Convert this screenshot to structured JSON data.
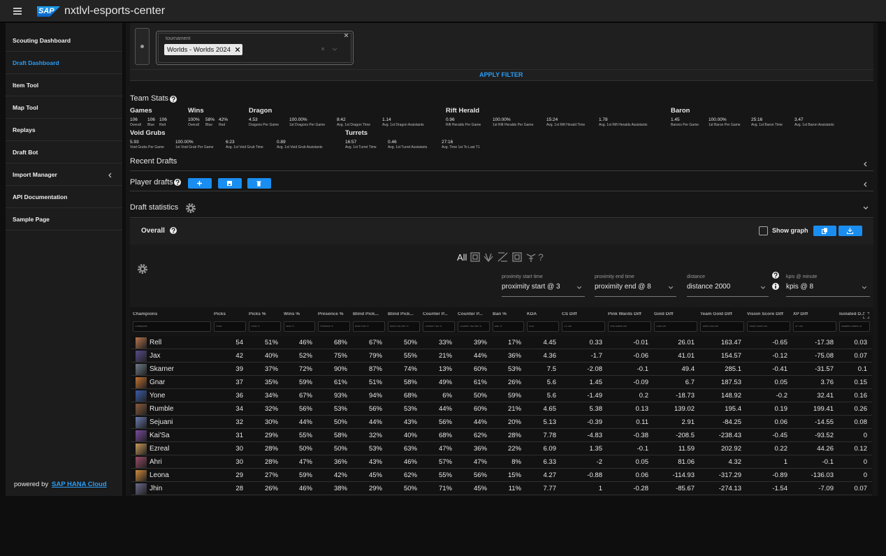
{
  "header": {
    "logo": "SAP",
    "title": "nxtlvl-esports-center"
  },
  "sidebar": {
    "items": [
      "Scouting Dashboard",
      "Draft Dashboard",
      "Item Tool",
      "Map Tool",
      "Replays",
      "Draft Bot",
      "Import Manager",
      "API Documentation",
      "Sample Page"
    ],
    "footer_prefix": "powered by",
    "footer_link": "SAP HANA Cloud"
  },
  "filter": {
    "label": "tournament",
    "chip": "Worlds - Worlds 2024",
    "apply": "APPLY FILTER"
  },
  "team_stats": {
    "title": "Team Stats",
    "groups": [
      {
        "name": "Games",
        "items": [
          {
            "value": "106",
            "label": "Overall"
          },
          {
            "value": "106",
            "label": "Blue"
          },
          {
            "value": "106",
            "label": "Red"
          }
        ]
      },
      {
        "name": "Wins",
        "items": [
          {
            "value": "100%",
            "label": "Overall"
          },
          {
            "value": "58%",
            "label": "Blue"
          },
          {
            "value": "42%",
            "label": "Red"
          }
        ]
      },
      {
        "name": "Dragon",
        "items": [
          {
            "value": "4.53",
            "label": "Dragons Per Game"
          },
          {
            "value": "100.00%",
            "label": "1st Dragons Per Game"
          },
          {
            "value": "8:42",
            "label": "Avg. 1st Dragon Time"
          },
          {
            "value": "1.14",
            "label": "Avg. 1st Dragon Assistants"
          }
        ]
      },
      {
        "name": "Rift Herald",
        "items": [
          {
            "value": "0.96",
            "label": "Rift Heralds Per Game"
          },
          {
            "value": "100.00%",
            "label": "1st Rift Heralds Per Game"
          },
          {
            "value": "15:24",
            "label": "Avg. 1st Rift Herald Time"
          },
          {
            "value": "1.78",
            "label": "Avg. 1st Rift Heralds Assistants"
          }
        ]
      },
      {
        "name": "Baron",
        "items": [
          {
            "value": "1.45",
            "label": "Barons Per Game"
          },
          {
            "value": "100.00%",
            "label": "1st Baron Per Game"
          },
          {
            "value": "25:16",
            "label": "Avg. 1st Baron Time"
          },
          {
            "value": "3.47",
            "label": "Avg. 1st Baron Assistants"
          }
        ]
      },
      {
        "name": "Void Grubs",
        "items": [
          {
            "value": "5.93",
            "label": "Void Grubs Per Game"
          },
          {
            "value": "100.00%",
            "label": "1st Void Grub Per Game"
          },
          {
            "value": "6:23",
            "label": "Avg. 1st Void Grub Time"
          },
          {
            "value": "0.89",
            "label": "Avg. 1st Void Grub Assistants"
          }
        ]
      },
      {
        "name": "Turrets",
        "items": [
          {
            "value": "16:57",
            "label": "Avg. 1st Turret Time"
          },
          {
            "value": "0.46",
            "label": "Avg. 1st Turret Assistants"
          },
          {
            "value": "27:16",
            "label": "Avg. Time 1st To Last T1"
          }
        ]
      }
    ]
  },
  "recent_drafts": {
    "title": "Recent Drafts"
  },
  "player_drafts": {
    "title": "Player drafts"
  },
  "draft_statistics": {
    "title": "Draft statistics",
    "overall": "Overall",
    "show_graph": "Show graph",
    "role_all": "All",
    "role_unknown": "?",
    "dropdowns": [
      {
        "label": "proximity start time",
        "value": "proximity start @ 3"
      },
      {
        "label": "proximity end time",
        "value": "proximity end @ 8"
      },
      {
        "label": "distance",
        "value": "distance 2000"
      },
      {
        "label": "kpis @ minute",
        "value": "kpis @ 8"
      }
    ],
    "table": {
      "columns": [
        "Champions",
        "Picks",
        "Picks %",
        "Wins %",
        "Presence %",
        "Blind Pick...",
        "Blind Pick...",
        "Counter P...",
        "Counter P...",
        "Ban %",
        "KDA",
        "CS Diff",
        "Pink Wards Diff",
        "Gold Diff",
        "Team Gold Diff",
        "Vision Score Diff",
        "XP Diff",
        "Isolated D..."
      ],
      "filters": [
        "Champions",
        "Picks",
        "Picks %",
        "Wins %",
        "Presence %",
        "Blind Pick %",
        "Blind Pick Win %",
        "Counter Pick %",
        "Counter Pick Win %",
        "Ban %",
        "KDA",
        "CS Diff",
        "Pink Wards Diff",
        "Gold Diff",
        "Team Gold Diff",
        "Vision Score Diff",
        "XP Diff",
        "Isolated Deaths 15"
      ],
      "rows": [
        [
          "Rell",
          "54",
          "51%",
          "46%",
          "68%",
          "67%",
          "50%",
          "33%",
          "39%",
          "17%",
          "4.45",
          "0.33",
          "-0.01",
          "26.01",
          "163.47",
          "-0.65",
          "-17.38",
          "0.03"
        ],
        [
          "Jax",
          "42",
          "40%",
          "52%",
          "75%",
          "79%",
          "55%",
          "21%",
          "44%",
          "36%",
          "4.36",
          "-1.7",
          "-0.06",
          "41.01",
          "154.57",
          "-0.12",
          "-75.08",
          "0.07"
        ],
        [
          "Skarner",
          "39",
          "37%",
          "72%",
          "90%",
          "87%",
          "74%",
          "13%",
          "60%",
          "53%",
          "7.5",
          "-2.08",
          "-0.1",
          "49.4",
          "285.1",
          "-0.41",
          "-31.57",
          "0.1"
        ],
        [
          "Gnar",
          "37",
          "35%",
          "59%",
          "61%",
          "51%",
          "58%",
          "49%",
          "61%",
          "26%",
          "5.6",
          "1.45",
          "-0.09",
          "6.7",
          "187.53",
          "0.05",
          "3.76",
          "0.15"
        ],
        [
          "Yone",
          "36",
          "34%",
          "67%",
          "93%",
          "94%",
          "68%",
          "6%",
          "50%",
          "59%",
          "5.6",
          "-1.49",
          "0.2",
          "-18.73",
          "148.92",
          "-0.2",
          "32.41",
          "0.16"
        ],
        [
          "Rumble",
          "34",
          "32%",
          "56%",
          "53%",
          "56%",
          "53%",
          "44%",
          "60%",
          "21%",
          "4.65",
          "5.38",
          "0.13",
          "139.02",
          "195.4",
          "0.19",
          "199.41",
          "0.26"
        ],
        [
          "Sejuani",
          "32",
          "30%",
          "44%",
          "50%",
          "44%",
          "43%",
          "56%",
          "44%",
          "20%",
          "5.13",
          "-0.39",
          "0.11",
          "2.91",
          "-84.25",
          "0.06",
          "-14.55",
          "0.08"
        ],
        [
          "Kai'Sa",
          "31",
          "29%",
          "55%",
          "58%",
          "32%",
          "40%",
          "68%",
          "62%",
          "28%",
          "7.78",
          "-4.83",
          "-0.38",
          "-208.5",
          "-238.43",
          "-0.45",
          "-93.52",
          "0"
        ],
        [
          "Ezreal",
          "30",
          "28%",
          "50%",
          "50%",
          "53%",
          "63%",
          "47%",
          "36%",
          "22%",
          "6.09",
          "1.35",
          "-0.1",
          "11.59",
          "202.92",
          "0.22",
          "44.26",
          "0.12"
        ],
        [
          "Ahri",
          "30",
          "28%",
          "47%",
          "36%",
          "43%",
          "46%",
          "57%",
          "47%",
          "8%",
          "6.33",
          "-2",
          "0.05",
          "81.06",
          "4.32",
          "1",
          "-0.1",
          "0"
        ],
        [
          "Leona",
          "29",
          "27%",
          "59%",
          "42%",
          "45%",
          "62%",
          "55%",
          "56%",
          "15%",
          "4.27",
          "-0.88",
          "0.06",
          "-114.93",
          "-317.29",
          "-0.89",
          "-136.03",
          "0"
        ],
        [
          "Jhin",
          "28",
          "26%",
          "46%",
          "38%",
          "29%",
          "50%",
          "71%",
          "45%",
          "11%",
          "7.77",
          "1",
          "-0.28",
          "-85.67",
          "-274.13",
          "-1.54",
          "-7.09",
          "0.07"
        ]
      ]
    }
  }
}
